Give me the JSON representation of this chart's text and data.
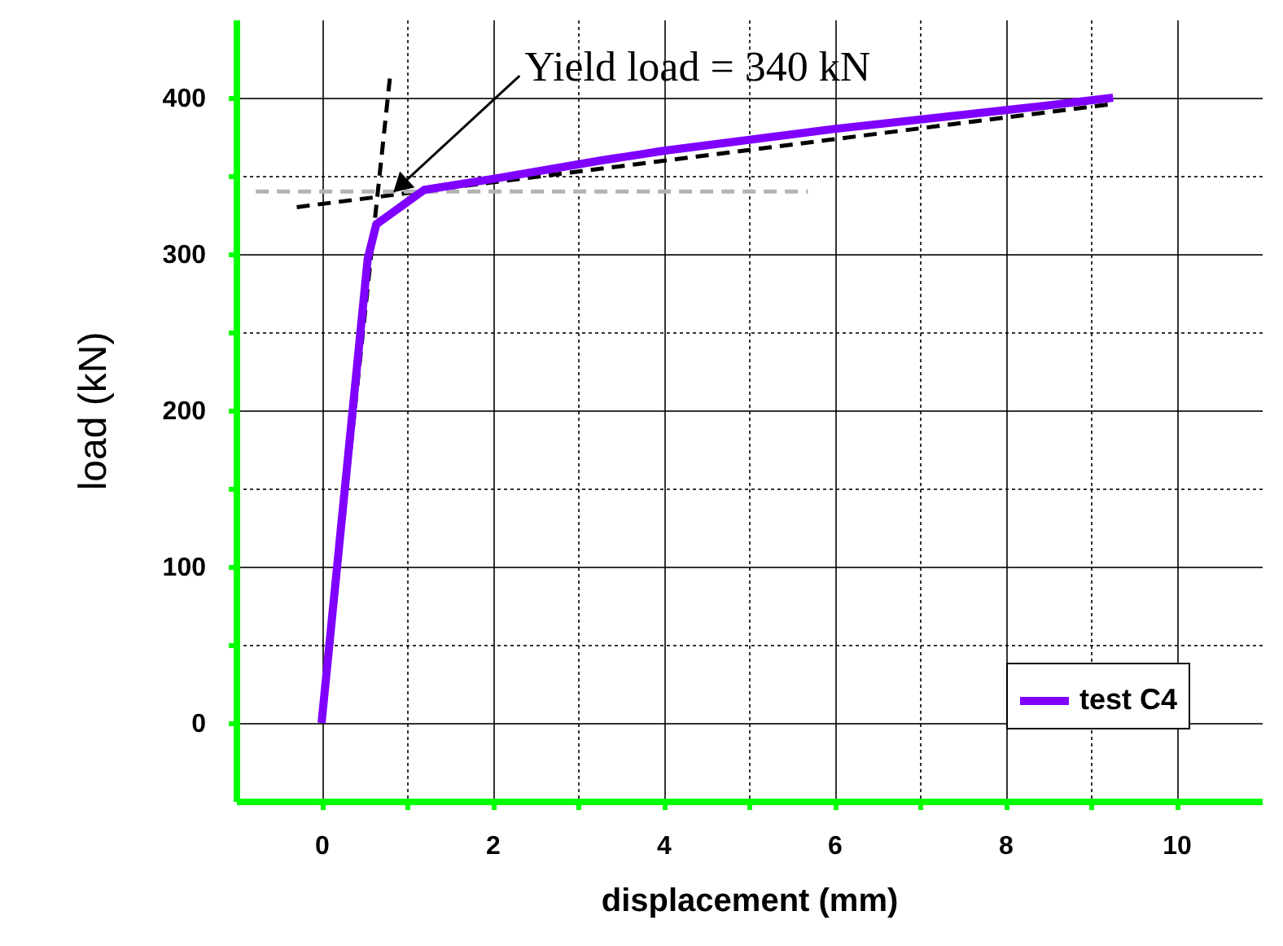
{
  "chart_data": {
    "type": "line",
    "xlabel": "displacement (mm)",
    "ylabel": "load (kN)",
    "xlim": [
      -1,
      11
    ],
    "ylim": [
      -50,
      450
    ],
    "xticks": [
      0,
      {
        "value": 1,
        "label": null
      },
      2,
      {
        "value": 3,
        "label": null
      },
      4,
      {
        "value": 5,
        "label": null
      },
      6,
      {
        "value": 7,
        "label": null
      },
      8,
      {
        "value": 9,
        "label": null
      },
      10
    ],
    "yticks": [
      0,
      {
        "value": 50,
        "label": null
      },
      100,
      {
        "value": 150,
        "label": null
      },
      200,
      {
        "value": 250,
        "label": null
      },
      300,
      {
        "value": 350,
        "label": null
      },
      400
    ],
    "grid": true,
    "legend": "bottom right",
    "marker": "none",
    "annotations": [
      {
        "text": "Yield load = 340 kN",
        "x": 0.85,
        "y": 340
      }
    ],
    "series": [
      {
        "name": "test C4",
        "color": "#7f00ff",
        "line_style": "solid",
        "x": [
          0,
          0.54,
          0.64,
          1.2,
          2,
          3.29,
          4,
          6,
          8.33,
          9.26
        ],
        "values": [
          0,
          297,
          319,
          341,
          348,
          360,
          366,
          380,
          394,
          400
        ]
      },
      {
        "color": "#000000",
        "line_style": "dashed",
        "x": [
          0,
          0.8
        ],
        "values": [
          0,
          413
        ]
      },
      {
        "color": "#000000",
        "line_style": "dashed",
        "x": [
          -0.29,
          9.26
        ],
        "values": [
          330,
          396
        ]
      },
      {
        "color": "#b3b3b3",
        "line_style": "dashed",
        "x": [
          -0.77,
          5.69
        ],
        "values": [
          340,
          340
        ]
      }
    ]
  }
}
